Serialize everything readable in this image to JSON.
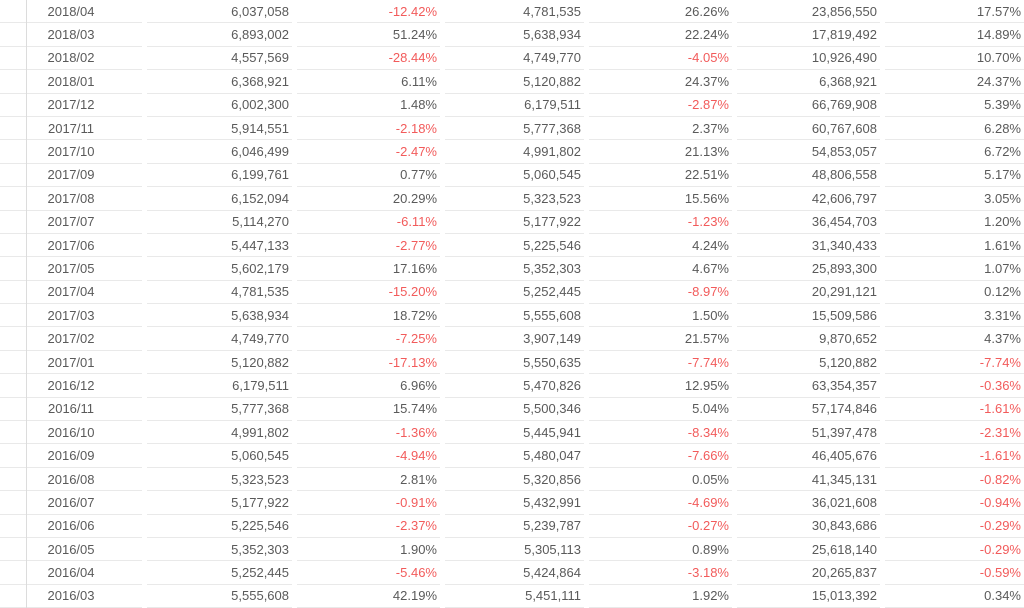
{
  "colors": {
    "text": "#5a5a5a",
    "negative": "#f25b5b",
    "row_border": "#e9e9e9",
    "left_rule": "#dcdcdc",
    "background": "#ffffff"
  },
  "table": {
    "columns": [
      "month",
      "monthly-value",
      "mom-pct",
      "prior-year-value",
      "yoy-pct",
      "cumulative-value",
      "cumulative-pct"
    ],
    "rows": [
      [
        "2018/04",
        "6,037,058",
        "-12.42%",
        "4,781,535",
        "26.26%",
        "23,856,550",
        "17.57%"
      ],
      [
        "2018/03",
        "6,893,002",
        "51.24%",
        "5,638,934",
        "22.24%",
        "17,819,492",
        "14.89%"
      ],
      [
        "2018/02",
        "4,557,569",
        "-28.44%",
        "4,749,770",
        "-4.05%",
        "10,926,490",
        "10.70%"
      ],
      [
        "2018/01",
        "6,368,921",
        "6.11%",
        "5,120,882",
        "24.37%",
        "6,368,921",
        "24.37%"
      ],
      [
        "2017/12",
        "6,002,300",
        "1.48%",
        "6,179,511",
        "-2.87%",
        "66,769,908",
        "5.39%"
      ],
      [
        "2017/11",
        "5,914,551",
        "-2.18%",
        "5,777,368",
        "2.37%",
        "60,767,608",
        "6.28%"
      ],
      [
        "2017/10",
        "6,046,499",
        "-2.47%",
        "4,991,802",
        "21.13%",
        "54,853,057",
        "6.72%"
      ],
      [
        "2017/09",
        "6,199,761",
        "0.77%",
        "5,060,545",
        "22.51%",
        "48,806,558",
        "5.17%"
      ],
      [
        "2017/08",
        "6,152,094",
        "20.29%",
        "5,323,523",
        "15.56%",
        "42,606,797",
        "3.05%"
      ],
      [
        "2017/07",
        "5,114,270",
        "-6.11%",
        "5,177,922",
        "-1.23%",
        "36,454,703",
        "1.20%"
      ],
      [
        "2017/06",
        "5,447,133",
        "-2.77%",
        "5,225,546",
        "4.24%",
        "31,340,433",
        "1.61%"
      ],
      [
        "2017/05",
        "5,602,179",
        "17.16%",
        "5,352,303",
        "4.67%",
        "25,893,300",
        "1.07%"
      ],
      [
        "2017/04",
        "4,781,535",
        "-15.20%",
        "5,252,445",
        "-8.97%",
        "20,291,121",
        "0.12%"
      ],
      [
        "2017/03",
        "5,638,934",
        "18.72%",
        "5,555,608",
        "1.50%",
        "15,509,586",
        "3.31%"
      ],
      [
        "2017/02",
        "4,749,770",
        "-7.25%",
        "3,907,149",
        "21.57%",
        "9,870,652",
        "4.37%"
      ],
      [
        "2017/01",
        "5,120,882",
        "-17.13%",
        "5,550,635",
        "-7.74%",
        "5,120,882",
        "-7.74%"
      ],
      [
        "2016/12",
        "6,179,511",
        "6.96%",
        "5,470,826",
        "12.95%",
        "63,354,357",
        "-0.36%"
      ],
      [
        "2016/11",
        "5,777,368",
        "15.74%",
        "5,500,346",
        "5.04%",
        "57,174,846",
        "-1.61%"
      ],
      [
        "2016/10",
        "4,991,802",
        "-1.36%",
        "5,445,941",
        "-8.34%",
        "51,397,478",
        "-2.31%"
      ],
      [
        "2016/09",
        "5,060,545",
        "-4.94%",
        "5,480,047",
        "-7.66%",
        "46,405,676",
        "-1.61%"
      ],
      [
        "2016/08",
        "5,323,523",
        "2.81%",
        "5,320,856",
        "0.05%",
        "41,345,131",
        "-0.82%"
      ],
      [
        "2016/07",
        "5,177,922",
        "-0.91%",
        "5,432,991",
        "-4.69%",
        "36,021,608",
        "-0.94%"
      ],
      [
        "2016/06",
        "5,225,546",
        "-2.37%",
        "5,239,787",
        "-0.27%",
        "30,843,686",
        "-0.29%"
      ],
      [
        "2016/05",
        "5,352,303",
        "1.90%",
        "5,305,113",
        "0.89%",
        "25,618,140",
        "-0.29%"
      ],
      [
        "2016/04",
        "5,252,445",
        "-5.46%",
        "5,424,864",
        "-3.18%",
        "20,265,837",
        "-0.59%"
      ],
      [
        "2016/03",
        "5,555,608",
        "42.19%",
        "5,451,111",
        "1.92%",
        "15,013,392",
        "0.34%"
      ]
    ]
  }
}
